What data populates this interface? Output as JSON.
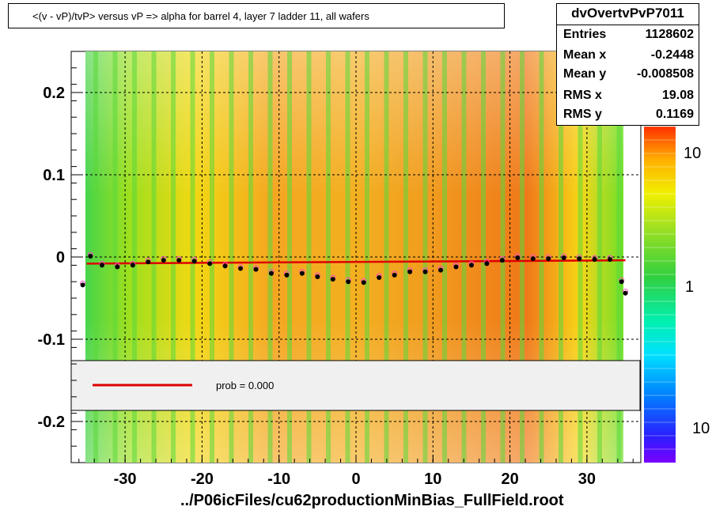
{
  "title": "<(v - vP)/tvP> versus   vP => alpha for barrel 4, layer 7 ladder 11, all wafers",
  "footer": "../P06icFiles/cu62productionMinBias_FullField.root",
  "stats": {
    "name": "dvOvertvPvP7011",
    "rows": [
      {
        "label": "Entries",
        "value": "1128602"
      },
      {
        "label": "Mean x",
        "value": "-0.2448"
      },
      {
        "label": "Mean y",
        "value": "-0.008508"
      },
      {
        "label": "RMS x",
        "value": "19.08"
      },
      {
        "label": "RMS y",
        "value": "0.1169"
      }
    ]
  },
  "legend": {
    "text": "prob = 0.000",
    "line_color": "#dd0000"
  },
  "colors": {
    "fit_line": "#dd0000",
    "profile": "#000000",
    "open_markers": "#ff44cc"
  },
  "chart_data": {
    "type": "heatmap",
    "xlim": [
      -37,
      37
    ],
    "ylim": [
      -0.25,
      0.25
    ],
    "x_ticks": [
      -30,
      -20,
      -10,
      0,
      10,
      20,
      30
    ],
    "y_ticks": [
      -0.2,
      -0.1,
      0,
      0.1,
      0.2
    ],
    "y_tick_labels": [
      "-0.2",
      "-0.1",
      "0",
      "0.1",
      "0.2"
    ],
    "grid": true,
    "z_scale": "log",
    "z_tick_labels": [
      "10",
      "1",
      "10"
    ],
    "fit_line": {
      "x": [
        -35,
        35
      ],
      "y": [
        -0.008,
        -0.004
      ]
    },
    "profile": {
      "x": [
        -35.5,
        -34.5,
        -33,
        -31,
        -29,
        -27,
        -25,
        -23,
        -21,
        -19,
        -17,
        -15,
        -13,
        -11,
        -9,
        -7,
        -5,
        -3,
        -1,
        1,
        3,
        5,
        7,
        9,
        11,
        13,
        15,
        17,
        19,
        21,
        23,
        25,
        27,
        29,
        31,
        33,
        34.5,
        35
      ],
      "y": [
        -0.034,
        0.001,
        -0.01,
        -0.012,
        -0.01,
        -0.006,
        -0.004,
        -0.004,
        -0.005,
        -0.008,
        -0.011,
        -0.014,
        -0.015,
        -0.02,
        -0.022,
        -0.02,
        -0.024,
        -0.027,
        -0.03,
        -0.031,
        -0.025,
        -0.022,
        -0.018,
        -0.018,
        -0.016,
        -0.012,
        -0.01,
        -0.008,
        -0.004,
        -0.001,
        -0.002,
        -0.002,
        -0.001,
        -0.002,
        -0.003,
        -0.003,
        -0.03,
        -0.044
      ]
    }
  }
}
